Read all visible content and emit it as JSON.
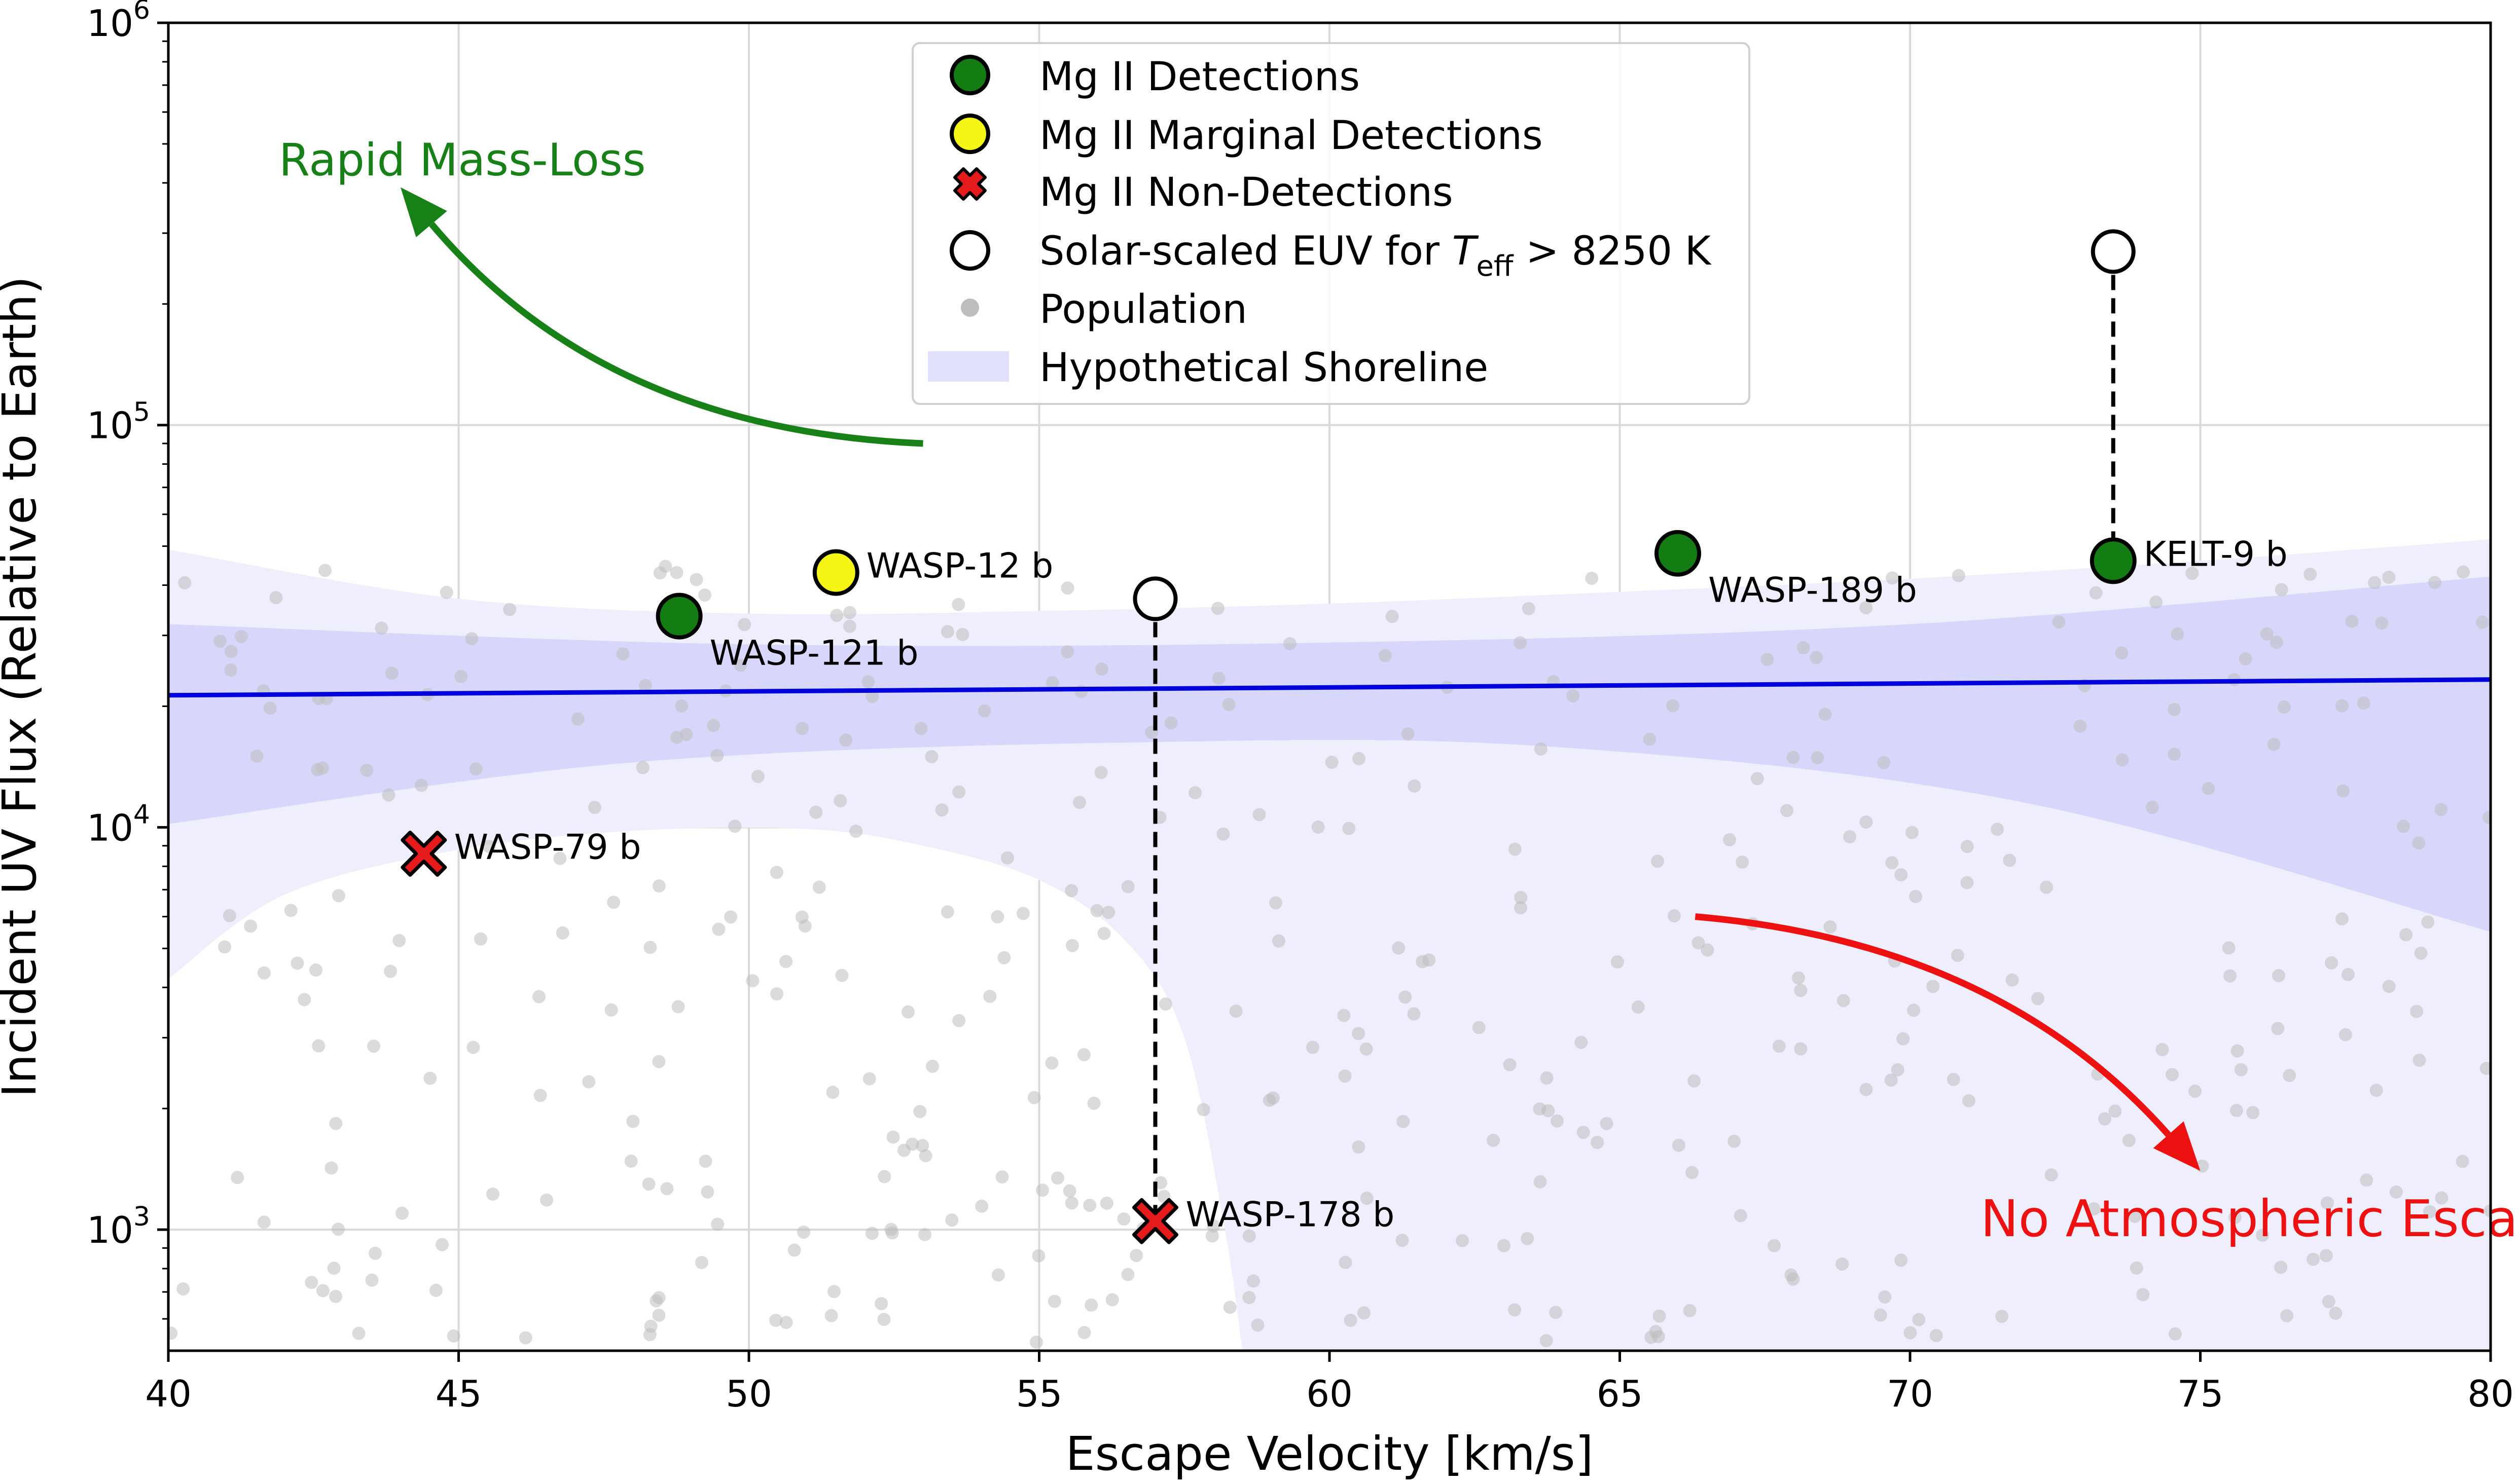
{
  "chart_data": {
    "type": "scatter",
    "title": "",
    "xlabel": "Escape Velocity [km/s]",
    "ylabel": "Incident UV Flux (Relative to Earth)",
    "xlim": [
      40,
      80
    ],
    "ylim": [
      500,
      1000000
    ],
    "yscale": "log",
    "grid": true,
    "x_ticks": [
      40,
      45,
      50,
      55,
      60,
      65,
      70,
      75,
      80
    ],
    "y_ticks": [
      {
        "value": 1000,
        "base": "10",
        "exp": "3"
      },
      {
        "value": 10000,
        "base": "10",
        "exp": "4"
      },
      {
        "value": 100000,
        "base": "10",
        "exp": "5"
      },
      {
        "value": 1000000,
        "base": "10",
        "exp": "6"
      }
    ],
    "legend": {
      "placement": "upper-center",
      "entries": {
        "detections": "Mg II Detections",
        "marginal": "Mg II Marginal Detections",
        "nondetections": "Mg II Non-Detections",
        "euv_prefix": "Solar-scaled EUV for ",
        "euv_T": "T",
        "euv_sub": "eff",
        "euv_suffix": " > 8250 K",
        "population": "Population",
        "shoreline": "Hypothetical Shoreline"
      }
    },
    "colors": {
      "detection": "#137d13",
      "marginal": "#f5f516",
      "nondetection": "#e41a1c",
      "population": "#bdbdbd",
      "shoreline_line": "#0000dd",
      "band_inner": "#d7d7fb",
      "band_outer": "#eeeefd",
      "rapid_arrow": "#178017",
      "escape_arrow": "#ee1111"
    },
    "shoreline": {
      "line": [
        [
          40,
          21300
        ],
        [
          80,
          23300
        ]
      ],
      "inner_upper": [
        [
          40,
          32000
        ],
        [
          50,
          28500
        ],
        [
          60,
          28800
        ],
        [
          70,
          32000
        ],
        [
          80,
          42000
        ]
      ],
      "inner_lower": [
        [
          40,
          10200
        ],
        [
          48,
          14500
        ],
        [
          57,
          16300
        ],
        [
          64,
          15800
        ],
        [
          72,
          11500
        ],
        [
          80,
          5500
        ]
      ],
      "outer_upper": [
        [
          40,
          49000
        ],
        [
          45,
          37000
        ],
        [
          50,
          34000
        ],
        [
          55,
          34500
        ],
        [
          60,
          36000
        ],
        [
          65,
          38500
        ],
        [
          70,
          41500
        ],
        [
          75,
          46000
        ],
        [
          80,
          52000
        ]
      ],
      "outer_lower": [
        [
          40,
          4200
        ],
        [
          42,
          6800
        ],
        [
          45,
          8800
        ],
        [
          48,
          9800
        ],
        [
          51,
          9900
        ],
        [
          53,
          9000
        ],
        [
          55,
          7400
        ],
        [
          56.5,
          5200
        ],
        [
          57.5,
          3000
        ],
        [
          58.2,
          1000
        ],
        [
          58.5,
          500
        ]
      ]
    },
    "planets": [
      {
        "name": "WASP-121 b",
        "x": 48.8,
        "y": 33500,
        "status": "detection",
        "label_side": "below-right"
      },
      {
        "name": "WASP-12 b",
        "x": 51.5,
        "y": 43000,
        "status": "marginal",
        "label_side": "upper-right"
      },
      {
        "name": "WASP-189 b",
        "x": 66.0,
        "y": 48000,
        "status": "detection",
        "label_side": "below-right"
      },
      {
        "name": "KELT-9 b",
        "x": 73.5,
        "y": 46000,
        "status": "detection",
        "label_side": "upper-right"
      },
      {
        "name": "WASP-79 b",
        "x": 44.4,
        "y": 8600,
        "status": "nondetection",
        "label_side": "upper-right"
      },
      {
        "name": "WASP-178 b",
        "x": 57.0,
        "y": 1050,
        "status": "nondetection",
        "label_side": "upper-right"
      }
    ],
    "euv_points": [
      {
        "x": 57.0,
        "y": 37000,
        "connects_to": "WASP-178 b"
      },
      {
        "x": 73.5,
        "y": 270000,
        "connects_to": "KELT-9 b"
      }
    ],
    "annotations": [
      {
        "text": "Rapid Mass-Loss",
        "x": 44.0,
        "y": 430000,
        "color": "#178017"
      },
      {
        "text": "No Atmospheric Escape",
        "x": 72.0,
        "y": 1020,
        "color": "#ee1111"
      }
    ],
    "arrows": [
      {
        "name": "rapid-mass-loss-arrow",
        "from": [
          53.0,
          90000
        ],
        "to": [
          44.0,
          390000
        ],
        "bend": -0.22,
        "color": "#178017"
      },
      {
        "name": "no-escape-arrow",
        "from": [
          66.3,
          6000
        ],
        "to": [
          75.0,
          1400
        ],
        "bend": -0.2,
        "color": "#ee1111"
      }
    ],
    "population_count": 440,
    "population_seed": 7
  }
}
